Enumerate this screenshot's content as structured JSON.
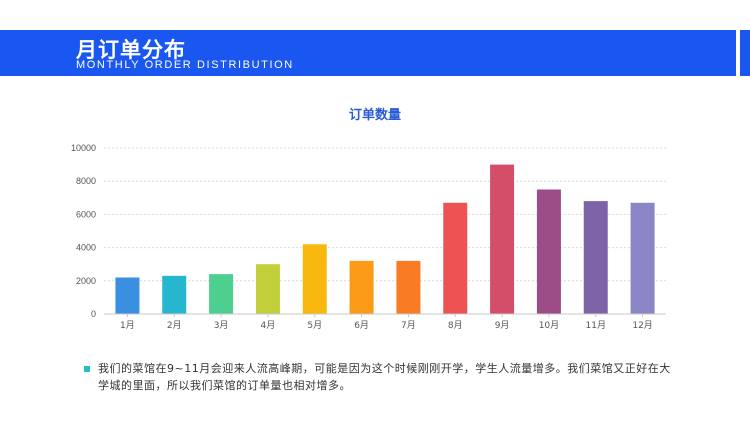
{
  "header": {
    "title": "月订单分布",
    "subtitle": "MONTHLY ORDER DISTRIBUTION",
    "accent_color": "#1a56f0"
  },
  "chart_data": {
    "type": "bar",
    "title": "订单数量",
    "xlabel": "",
    "ylabel": "",
    "categories": [
      "1月",
      "2月",
      "3月",
      "4月",
      "5月",
      "6月",
      "7月",
      "8月",
      "9月",
      "10月",
      "11月",
      "12月"
    ],
    "values": [
      2200,
      2300,
      2400,
      3000,
      4200,
      3200,
      3200,
      6700,
      9000,
      7500,
      6800,
      6700
    ],
    "colors": [
      "#3b8fe0",
      "#26b7cf",
      "#4dcf8f",
      "#c2cf3a",
      "#f9b80e",
      "#fb9a17",
      "#f97c25",
      "#ee5353",
      "#d44e6a",
      "#9c4c86",
      "#7e63a9",
      "#8b86c6"
    ],
    "yticks": [
      0,
      2000,
      4000,
      6000,
      8000,
      10000
    ],
    "ylim": [
      0,
      10000
    ],
    "grid": true,
    "legend": "none"
  },
  "note": {
    "text": "我们的菜馆在9~11月会迎来人流高峰期，可能是因为这个时候刚刚开学，学生人流量增多。我们菜馆又正好在大学城的里面，所以我们菜馆的订单量也相对增多。"
  }
}
